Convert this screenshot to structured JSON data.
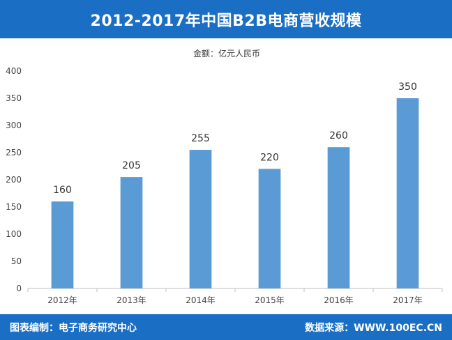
{
  "header": {
    "title": "2012-2017年中国B2B电商营收规模"
  },
  "footer": {
    "left_text": "图表编制：电子商务研究中心",
    "right_text": "数据来源：WWW.100EC.CN"
  },
  "colors": {
    "brand_blue": "#1a6fc4",
    "bar": "#5b9bd5"
  },
  "chart_data": {
    "type": "bar",
    "unit_label": "金额：亿元人民币",
    "categories": [
      "2012年",
      "2013年",
      "2014年",
      "2015年",
      "2016年",
      "2017年"
    ],
    "values": [
      160,
      205,
      255,
      220,
      260,
      350
    ],
    "ylim": [
      0,
      400
    ],
    "yticks": [
      0,
      50,
      100,
      150,
      200,
      250,
      300,
      350,
      400
    ],
    "grid": false
  }
}
